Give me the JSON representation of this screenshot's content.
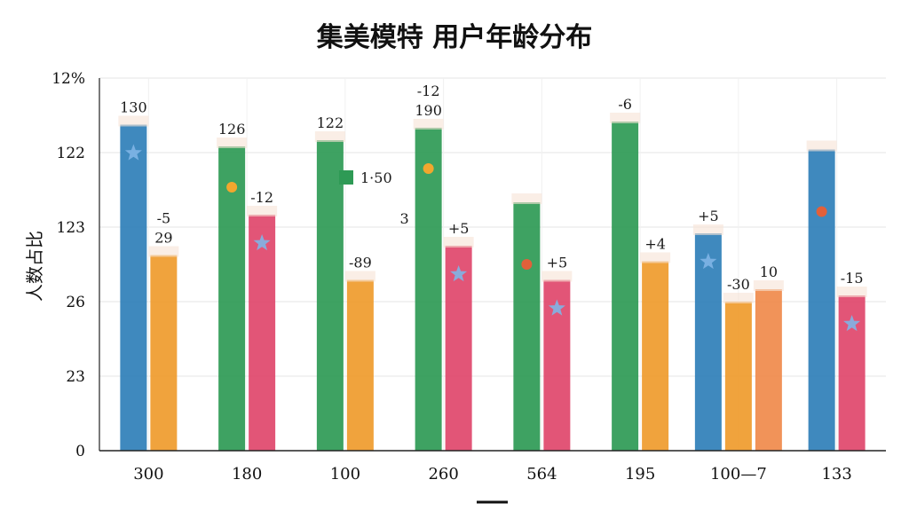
{
  "chart_data": {
    "type": "bar",
    "title": "集美模特 用户年龄分布",
    "ylabel": "人数占比",
    "xlabel": "",
    "y_tick_labels": [
      "12%",
      "122",
      "123",
      "26",
      "23",
      "0"
    ],
    "categories": [
      "300",
      "180",
      "100",
      "260",
      "564",
      "195",
      "100—7",
      "133"
    ],
    "legend": [
      {
        "label": "1·50",
        "color": "#2e9a55"
      }
    ],
    "ylim": [
      0,
      12
    ],
    "grid": true,
    "bars": [
      {
        "group": 0,
        "color": "#2f7fb8",
        "value": 10.5,
        "label": "130",
        "marker": "star"
      },
      {
        "group": 0,
        "color": "#ef9b2d",
        "value": 6.3,
        "label": "29",
        "label2": "-5"
      },
      {
        "group": 1,
        "color": "#2e9a55",
        "value": 9.8,
        "label": "126",
        "marker": "dot-orange"
      },
      {
        "group": 1,
        "color": "#e0476b",
        "value": 7.6,
        "label": "-12",
        "marker": "star"
      },
      {
        "group": 2,
        "color": "#2e9a55",
        "value": 10.0,
        "label": "122"
      },
      {
        "group": 2,
        "color": "#ef9b2d",
        "value": 5.5,
        "label": "-89"
      },
      {
        "group": 3,
        "color": "#2e9a55",
        "value": 10.4,
        "label": "190",
        "label2": "-12",
        "label3": "3",
        "marker": "dot-orange"
      },
      {
        "group": 3,
        "color": "#e0476b",
        "value": 6.6,
        "label": "+5",
        "marker": "star"
      },
      {
        "group": 4,
        "color": "#2e9a55",
        "value": 8.0,
        "marker": "dot-red"
      },
      {
        "group": 4,
        "color": "#e0476b",
        "value": 5.5,
        "label": "+5",
        "marker": "star"
      },
      {
        "group": 5,
        "color": "#2e9a55",
        "value": 10.6,
        "label": "-6"
      },
      {
        "group": 5,
        "color": "#ef9b2d",
        "value": 6.1,
        "label": "+4"
      },
      {
        "group": 6,
        "color": "#2f7fb8",
        "value": 7.0,
        "label": "+5",
        "marker": "star"
      },
      {
        "group": 6,
        "color": "#ef9b2d",
        "value": 4.8,
        "label": "-30"
      },
      {
        "group": 6,
        "color": "#f08a4b",
        "value": 5.2,
        "label": "10"
      },
      {
        "group": 7,
        "color": "#2f7fb8",
        "value": 9.7,
        "marker": "dot-red"
      },
      {
        "group": 7,
        "color": "#e0476b",
        "value": 5.0,
        "label": "-15",
        "marker": "star"
      }
    ]
  }
}
